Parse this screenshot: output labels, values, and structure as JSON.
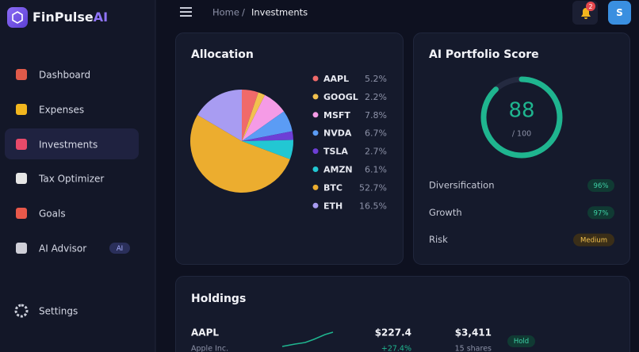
{
  "brand": {
    "name": "FinPulse",
    "accent": "AI"
  },
  "breadcrumb": {
    "home": "Home",
    "separator": "/",
    "current": "Investments"
  },
  "notifications": "2",
  "avatar": "S",
  "nav": [
    {
      "label": "Dashboard"
    },
    {
      "label": "Expenses"
    },
    {
      "label": "Investments"
    },
    {
      "label": "Tax Optimizer"
    },
    {
      "label": "Goals"
    },
    {
      "label": "AI Advisor",
      "badge": "AI"
    }
  ],
  "settings": "Settings",
  "chart_data": {
    "type": "pie",
    "title": "Allocation",
    "categories": [
      "AAPL",
      "GOOGL",
      "MSFT",
      "NVDA",
      "TSLA",
      "AMZN",
      "BTC",
      "ETH"
    ],
    "values": [
      5.2,
      2.2,
      7.8,
      6.7,
      2.7,
      6.1,
      52.7,
      16.5
    ],
    "value_labels": [
      "5.2%",
      "2.2%",
      "7.8%",
      "6.7%",
      "2.7%",
      "6.1%",
      "52.7%",
      "16.5%"
    ],
    "colors": [
      "#f06a6a",
      "#f2c14e",
      "#f59be6",
      "#5b9cf5",
      "#6d3fd6",
      "#22c7d3",
      "#ecad2f",
      "#a89cf2"
    ]
  },
  "score": {
    "title": "AI Portfolio Score",
    "value": 88,
    "max": {
      "value": 100,
      "label": "/ 100"
    },
    "color": "#1fb58f",
    "metrics": [
      {
        "label": "Diversification",
        "badge": "96%"
      },
      {
        "label": "Growth",
        "badge": "97%"
      },
      {
        "label": "Risk",
        "badge": "Medium"
      }
    ]
  },
  "holdings": {
    "title": "Holdings",
    "rows": [
      {
        "symbol": "AAPL",
        "name": "Apple Inc.",
        "price": "$227.4",
        "change": "+27.4%",
        "value": "$3,411",
        "shares": "15 shares",
        "action": "Hold"
      }
    ]
  }
}
